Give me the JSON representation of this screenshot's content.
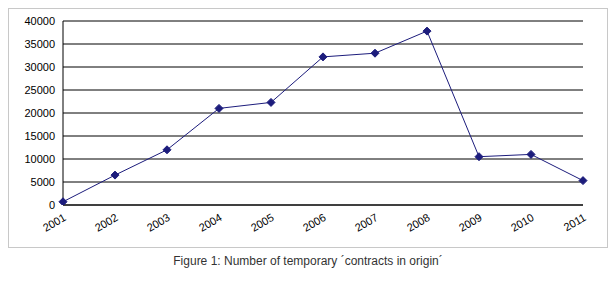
{
  "chart_data": {
    "type": "line",
    "title": "Figure 1: Number of temporary ´contracts in origin´",
    "categories": [
      "2001",
      "2002",
      "2003",
      "2004",
      "2005",
      "2006",
      "2007",
      "2008",
      "2009",
      "2010",
      "2011"
    ],
    "values": [
      700,
      6500,
      12000,
      21000,
      22300,
      32200,
      33000,
      37800,
      10500,
      11000,
      5300
    ],
    "color": "#1c1c7c",
    "marker": "diamond",
    "ylim": [
      0,
      40000
    ],
    "yticks": [
      0,
      5000,
      10000,
      15000,
      20000,
      25000,
      30000,
      35000,
      40000
    ],
    "grid": true
  }
}
